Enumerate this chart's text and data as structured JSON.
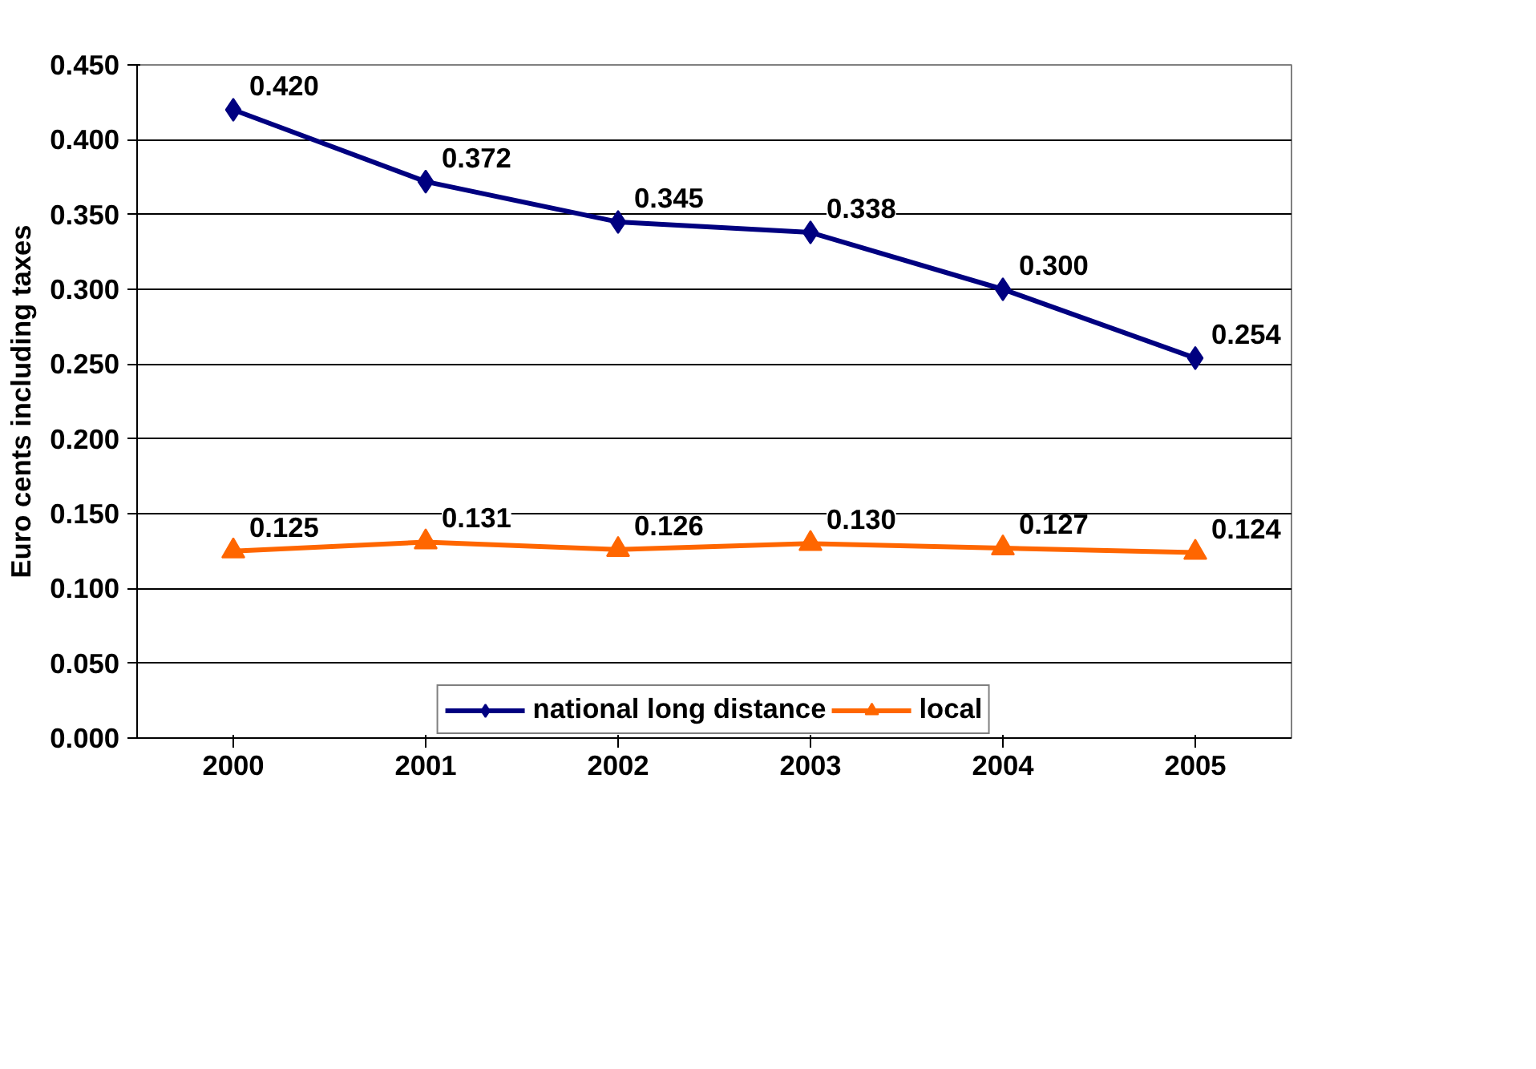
{
  "chart_data": {
    "type": "line",
    "ylabel": "Euro cents including taxes",
    "categories": [
      "2000",
      "2001",
      "2002",
      "2003",
      "2004",
      "2005"
    ],
    "series": [
      {
        "name": "national long distance",
        "color": "#000080",
        "marker": "diamond",
        "values": [
          0.42,
          0.372,
          0.345,
          0.338,
          0.3,
          0.254
        ],
        "value_labels": [
          "0.420",
          "0.372",
          "0.345",
          "0.338",
          "0.300",
          "0.254"
        ]
      },
      {
        "name": "local",
        "color": "#ff6600",
        "marker": "triangle",
        "values": [
          0.125,
          0.131,
          0.126,
          0.13,
          0.127,
          0.124
        ],
        "value_labels": [
          "0.125",
          "0.131",
          "0.126",
          "0.130",
          "0.127",
          "0.124"
        ]
      }
    ],
    "ylim": [
      0,
      0.45
    ],
    "yticks": [
      {
        "value": 0,
        "label": "0.000"
      },
      {
        "value": 0.05,
        "label": "0.050"
      },
      {
        "value": 0.1,
        "label": "0.100"
      },
      {
        "value": 0.15,
        "label": "0.150"
      },
      {
        "value": 0.2,
        "label": "0.200"
      },
      {
        "value": 0.25,
        "label": "0.250"
      },
      {
        "value": 0.3,
        "label": "0.300"
      },
      {
        "value": 0.35,
        "label": "0.350"
      },
      {
        "value": 0.4,
        "label": "0.400"
      },
      {
        "value": 0.45,
        "label": "0.450"
      }
    ],
    "grid": "y",
    "legend": "bottom",
    "line_style": "solid"
  }
}
